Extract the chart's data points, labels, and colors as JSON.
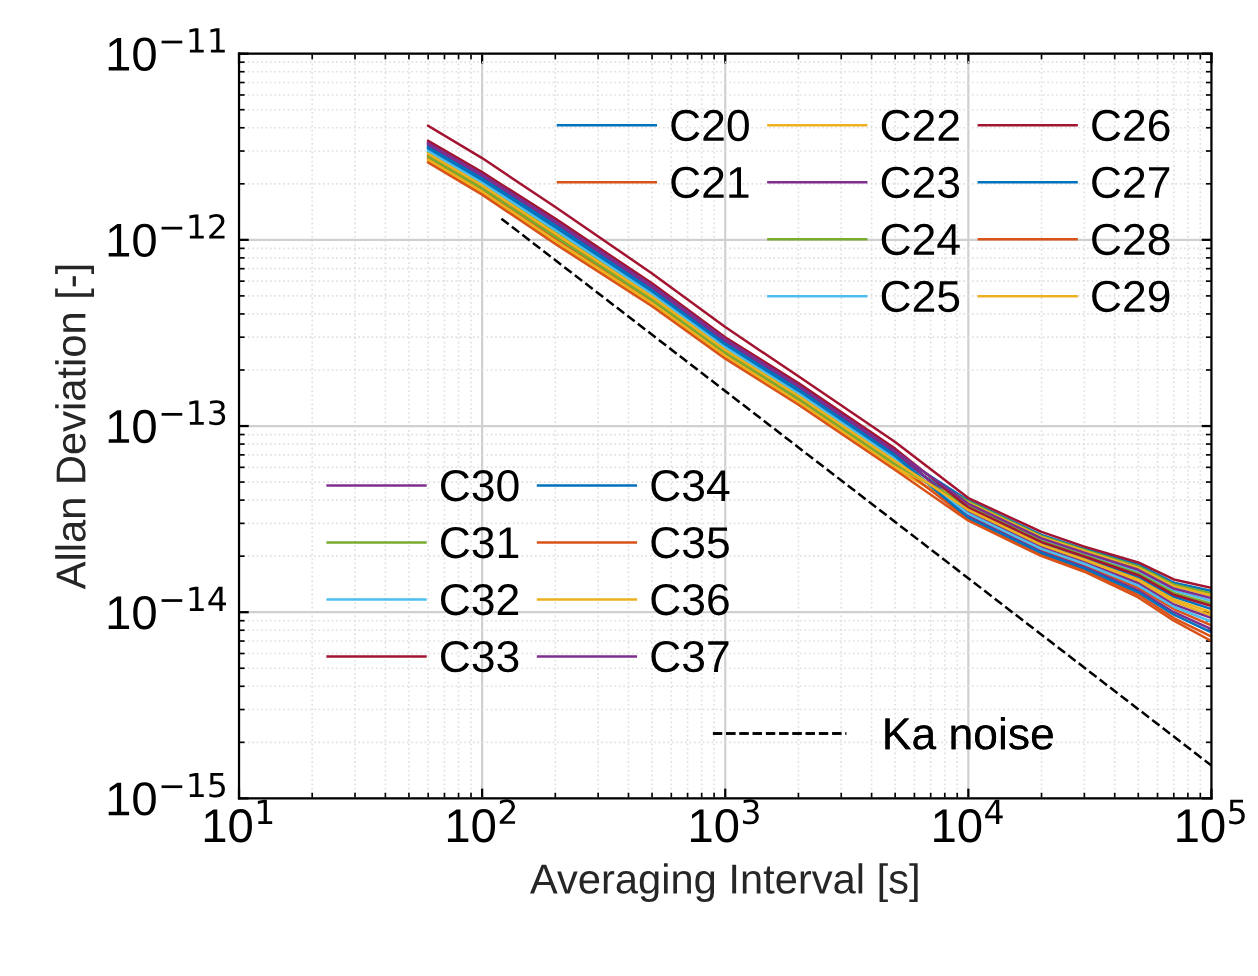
{
  "chart_data": {
    "type": "line",
    "xlabel": "Averaging Interval [s]",
    "ylabel": "Allan Deviation [-]",
    "log": "xy",
    "grid": true,
    "legend": "bottom right",
    "line_style": "solid",
    "marker": "none",
    "xlim": [
      10,
      100000
    ],
    "ylim": [
      1e-15,
      1e-11
    ],
    "xticks": [
      {
        "value": 10,
        "label": "10$^{1}$"
      },
      {
        "value": 100,
        "label": "10$^{2}$"
      },
      {
        "value": 1000,
        "label": "10$^{3}$"
      },
      {
        "value": 10000,
        "label": "10$^{4}$"
      },
      {
        "value": 100000,
        "label": "10$^{5}$"
      }
    ],
    "yticks": [
      {
        "value": 1e-15,
        "label": "10$^{−15}$"
      },
      {
        "value": 1e-14,
        "label": "10$^{−14}$"
      },
      {
        "value": 1e-13,
        "label": "10$^{−13}$"
      },
      {
        "value": 1e-12,
        "label": "10$^{−12}$"
      },
      {
        "value": 1e-11,
        "label": "10$^{−11}$"
      }
    ],
    "x": [
      60,
      100,
      200,
      500,
      1000,
      2000,
      5000,
      10000,
      20000,
      30000,
      50000,
      70000,
      100000
    ],
    "series": [
      {
        "name": "C20",
        "color": "#0072bd",
        "values": [
          3.2e-12,
          2.17e-12,
          1.21e-12,
          5.48e-13,
          2.83e-13,
          1.6e-13,
          7.12e-14,
          3.98e-14,
          2.6e-14,
          2.19e-14,
          1.8e-14,
          1.44e-14,
          1.3e-14
        ]
      },
      {
        "name": "C21",
        "color": "#d95319",
        "values": [
          2.75e-12,
          1.86e-12,
          1.02e-12,
          4.67e-13,
          2.43e-13,
          1.38e-13,
          6.13e-14,
          3.32e-14,
          2.15e-14,
          1.79e-14,
          1.35e-14,
          1.04e-14,
          8.5e-15
        ]
      },
      {
        "name": "C22",
        "color": "#edb120",
        "values": [
          2.65e-12,
          1.79e-12,
          9.7e-13,
          4.49e-13,
          2.34e-13,
          1.33e-13,
          5.91e-14,
          3.49e-14,
          2.26e-14,
          1.89e-14,
          1.46e-14,
          1.14e-14,
          9.6e-15
        ]
      },
      {
        "name": "C23",
        "color": "#7e2f8e",
        "values": [
          3.35e-12,
          2.28e-12,
          1.28e-12,
          5.75e-13,
          2.96e-13,
          1.68e-13,
          7.45e-14,
          3.27e-14,
          2.11e-14,
          1.75e-14,
          1.31e-14,
          1e-14,
          8.1e-15
        ]
      },
      {
        "name": "C24",
        "color": "#77ac30",
        "values": [
          2.95e-12,
          2e-12,
          1.1e-12,
          5.03e-13,
          2.61e-13,
          1.48e-13,
          6.57e-14,
          3.93e-14,
          2.56e-14,
          2.16e-14,
          1.76e-14,
          1.41e-14,
          1.26e-14
        ]
      },
      {
        "name": "C25",
        "color": "#4dbeee",
        "values": [
          3.05e-12,
          2.07e-12,
          1.15e-12,
          5.21e-13,
          2.7e-13,
          1.53e-13,
          6.79e-14,
          3.76e-14,
          2.45e-14,
          2.06e-14,
          1.65e-14,
          1.31e-14,
          1.15e-14
        ]
      },
      {
        "name": "C26",
        "color": "#a2142f",
        "values": [
          4.1e-12,
          2.75e-12,
          1.5e-12,
          6.6e-13,
          3.4e-13,
          1.85e-13,
          8.2e-14,
          4.1e-14,
          2.7e-14,
          2.25e-14,
          1.85e-14,
          1.5e-14,
          1.35e-14
        ]
      },
      {
        "name": "C27",
        "color": "#0072bd",
        "values": [
          3.15e-12,
          2.14e-12,
          1.19e-12,
          5.39e-13,
          2.78e-13,
          1.58e-13,
          7.01e-14,
          3.6e-14,
          2.34e-14,
          1.96e-14,
          1.54e-14,
          1.21e-14,
          1.04e-14
        ]
      },
      {
        "name": "C28",
        "color": "#d95319",
        "values": [
          2.85e-12,
          1.93e-12,
          1.06e-12,
          4.85e-13,
          2.52e-13,
          1.43e-13,
          6.35e-14,
          3.16e-14,
          2.04e-14,
          1.68e-14,
          1.24e-14,
          9.3e-15,
          7.4e-15
        ]
      },
      {
        "name": "C29",
        "color": "#edb120",
        "values": [
          2.7e-12,
          1.82e-12,
          9.9e-13,
          4.58e-13,
          2.39e-13,
          1.35e-13,
          6.02e-14,
          3.87e-14,
          2.53e-14,
          2.13e-14,
          1.73e-14,
          1.38e-14,
          1.23e-14
        ]
      },
      {
        "name": "C30",
        "color": "#7e2f8e",
        "values": [
          3.25e-12,
          2.21e-12,
          1.24e-12,
          5.57e-13,
          2.87e-13,
          1.63e-13,
          7.23e-14,
          3.43e-14,
          2.23e-14,
          1.85e-14,
          1.43e-14,
          1.1e-14,
          9.3e-15
        ]
      },
      {
        "name": "C31",
        "color": "#77ac30",
        "values": [
          2.8e-12,
          1.89e-12,
          1.04e-12,
          4.76e-13,
          2.48e-13,
          1.4e-13,
          6.24e-14,
          3.71e-14,
          2.41e-14,
          2.02e-14,
          1.61e-14,
          1.27e-14,
          1.11e-14
        ]
      },
      {
        "name": "C32",
        "color": "#4dbeee",
        "values": [
          3e-12,
          2.03e-12,
          1.13e-12,
          5.12e-13,
          2.65e-13,
          1.5e-13,
          6.68e-14,
          3.38e-14,
          2.19e-14,
          1.82e-14,
          1.39e-14,
          1.07e-14,
          8.9e-15
        ]
      },
      {
        "name": "C33",
        "color": "#a2142f",
        "values": [
          3.4e-12,
          2.31e-12,
          1.3e-12,
          5.84e-13,
          3e-13,
          1.7e-13,
          7.56e-14,
          3.65e-14,
          2.38e-14,
          1.99e-14,
          1.58e-14,
          1.24e-14,
          1.08e-14
        ]
      },
      {
        "name": "C34",
        "color": "#0072bd",
        "values": [
          3.1e-12,
          2.1e-12,
          1.17e-12,
          5.3e-13,
          2.74e-13,
          1.55e-13,
          6.9e-14,
          3.21e-14,
          2.08e-14,
          1.72e-14,
          1.28e-14,
          9.7e-15,
          7.8e-15
        ]
      },
      {
        "name": "C35",
        "color": "#d95319",
        "values": [
          2.6e-12,
          1.75e-12,
          9.5e-13,
          4.4e-13,
          2.3e-13,
          1.3e-13,
          5.8e-14,
          3.1e-14,
          2e-14,
          1.65e-14,
          1.2e-14,
          9e-15,
          7e-15
        ]
      },
      {
        "name": "C36",
        "color": "#edb120",
        "values": [
          2.9e-12,
          1.96e-12,
          1.08e-12,
          4.94e-13,
          2.56e-13,
          1.45e-13,
          6.46e-14,
          3.54e-14,
          2.3e-14,
          1.92e-14,
          1.5e-14,
          1.17e-14,
          1e-14
        ]
      },
      {
        "name": "C37",
        "color": "#7e2f8e",
        "values": [
          3.3e-12,
          2.24e-12,
          1.26e-12,
          5.66e-13,
          2.92e-13,
          1.65e-13,
          7.34e-14,
          3.82e-14,
          2.49e-14,
          2.09e-14,
          1.69e-14,
          1.34e-14,
          1.19e-14
        ]
      },
      {
        "name": "Ka noise",
        "color": "#000000",
        "line_style": "dashed",
        "x": [
          120,
          100000
        ],
        "values": [
          1.3e-12,
          1.5e-15
        ]
      }
    ]
  }
}
